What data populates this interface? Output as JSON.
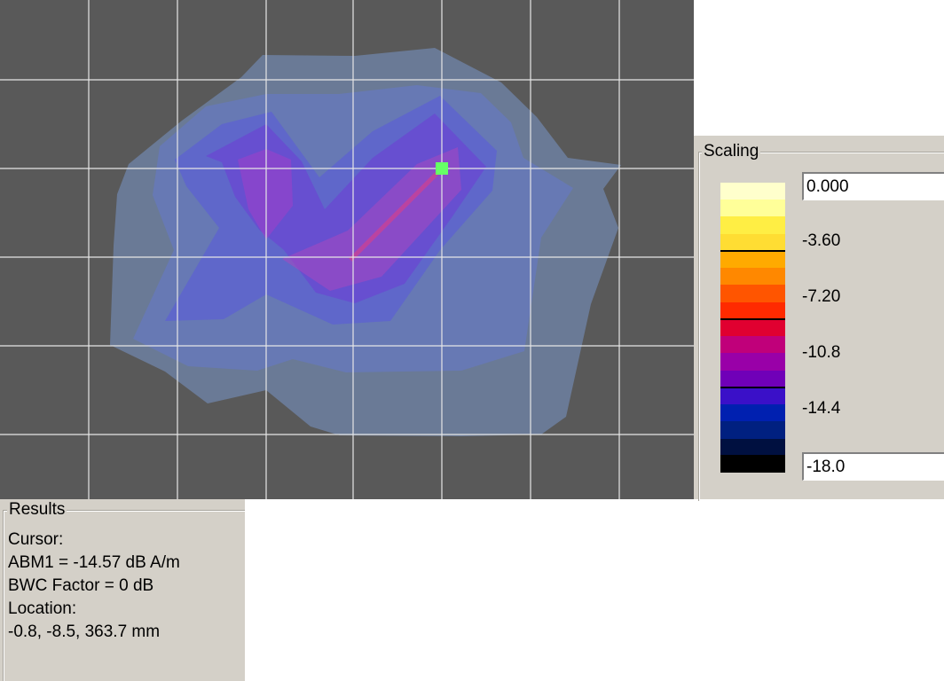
{
  "plot": {
    "background_color": "#595959",
    "grid_color": "#e6e6e6",
    "cursor_marker_color": "#66ff66"
  },
  "scaling": {
    "title": "Scaling",
    "max_value": "0.000",
    "min_value": "-18.0",
    "tick_labels": [
      "-3.60",
      "-7.20",
      "-10.8",
      "-14.4"
    ],
    "colorbar_colors": [
      "#ffffcc",
      "#ffff99",
      "#ffee44",
      "#ffdd33",
      "#ffaa00",
      "#ff8800",
      "#ff5500",
      "#ff2a00",
      "#e00030",
      "#c0007a",
      "#9900a8",
      "#7000b8",
      "#3a10c8",
      "#0020b0",
      "#002080",
      "#001040",
      "#000000"
    ]
  },
  "results": {
    "title": "Results",
    "cursor_label": "Cursor:",
    "abm1": "ABM1 = -14.57 dB A/m",
    "bwc_factor": "BWC Factor = 0 dB",
    "location_label": "Location:",
    "location_value": "-0.8, -8.5, 363.7 mm"
  }
}
